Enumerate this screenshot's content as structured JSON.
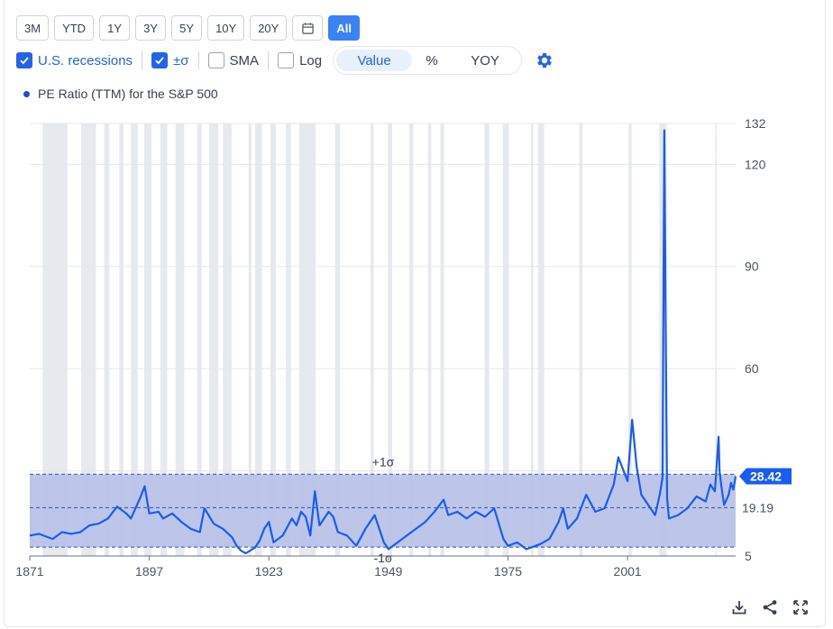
{
  "range_buttons": [
    {
      "label": "3M"
    },
    {
      "label": "YTD"
    },
    {
      "label": "1Y"
    },
    {
      "label": "3Y"
    },
    {
      "label": "5Y"
    },
    {
      "label": "10Y"
    },
    {
      "label": "20Y"
    }
  ],
  "range_all_label": "All",
  "options": {
    "recessions_label": "U.S. recessions",
    "sigma_label": "±σ",
    "sma_label": "SMA",
    "log_label": "Log",
    "modes": [
      "Value",
      "%",
      "YOY"
    ],
    "selected_mode": "Value"
  },
  "legend_label": "PE Ratio (TTM) for the S&P 500",
  "colors": {
    "accent": "#2563eb",
    "line": "#1a5cf0",
    "band": "#b9c3e8",
    "recession": "#e6eaef"
  },
  "icons": [
    "calendar-icon",
    "check-icon",
    "gear-icon",
    "download-icon",
    "share-icon",
    "expand-icon"
  ],
  "chart_data": {
    "type": "line",
    "title": "",
    "series_name": "PE Ratio (TTM) for the S&P 500",
    "xlim": [
      1871,
      2024.5
    ],
    "ylim": [
      5,
      132
    ],
    "x_ticks": [
      1871,
      1897,
      1923,
      1949,
      1975,
      2001
    ],
    "y_ticks": [
      120,
      90,
      60,
      5
    ],
    "y_top_label": "132",
    "mean_label": "19.19",
    "mean": 19.19,
    "plus_sigma": 29.0,
    "minus_sigma": 7.6,
    "plus_sigma_label": "+1σ",
    "minus_sigma_label": "-1σ",
    "last_value_label": "28.42",
    "last_value": 28.42,
    "recessions": [
      [
        1873.8,
        1879.2
      ],
      [
        1882.2,
        1885.4
      ],
      [
        1887.2,
        1888.3
      ],
      [
        1890.5,
        1891.4
      ],
      [
        1893.0,
        1894.5
      ],
      [
        1895.9,
        1897.5
      ],
      [
        1899.4,
        1900.9
      ],
      [
        1902.7,
        1904.6
      ],
      [
        1907.4,
        1908.4
      ],
      [
        1910.0,
        1912.0
      ],
      [
        1913.0,
        1914.9
      ],
      [
        1918.6,
        1919.2
      ],
      [
        1920.0,
        1921.5
      ],
      [
        1923.3,
        1924.5
      ],
      [
        1926.7,
        1927.8
      ],
      [
        1929.6,
        1933.2
      ],
      [
        1937.4,
        1938.5
      ],
      [
        1945.1,
        1945.8
      ],
      [
        1948.9,
        1949.8
      ],
      [
        1953.5,
        1954.4
      ],
      [
        1957.6,
        1958.3
      ],
      [
        1960.3,
        1961.1
      ],
      [
        1969.9,
        1970.9
      ],
      [
        1973.9,
        1975.2
      ],
      [
        1980.0,
        1980.5
      ],
      [
        1981.5,
        1982.9
      ],
      [
        1990.5,
        1991.2
      ],
      [
        2001.2,
        2001.9
      ],
      [
        2007.9,
        2009.5
      ],
      [
        2020.1,
        2020.4
      ]
    ],
    "x": [
      1871,
      1873,
      1876,
      1878,
      1880,
      1882,
      1884,
      1886,
      1888,
      1890,
      1892,
      1893,
      1895,
      1896,
      1897,
      1899,
      1900,
      1902,
      1904,
      1906,
      1908,
      1909,
      1911,
      1913,
      1915,
      1916,
      1917,
      1918,
      1920,
      1921,
      1922,
      1923,
      1924,
      1926,
      1928,
      1929,
      1930,
      1931,
      1932,
      1933,
      1934,
      1936,
      1937,
      1938,
      1940,
      1942,
      1944,
      1946,
      1948,
      1949,
      1951,
      1953,
      1955,
      1957,
      1959,
      1961,
      1962,
      1964,
      1966,
      1968,
      1970,
      1972,
      1974,
      1975,
      1977,
      1979,
      1980,
      1982,
      1984,
      1986,
      1987,
      1988,
      1990,
      1992,
      1994,
      1996,
      1998,
      1999,
      2000,
      2001,
      2002,
      2003,
      2004,
      2006,
      2007,
      2008,
      2008.6,
      2009,
      2009.3,
      2009.6,
      2010,
      2012,
      2014,
      2016,
      2018,
      2019,
      2020,
      2020.8,
      2021,
      2021.5,
      2022,
      2022.5,
      2023,
      2023.5,
      2024,
      2024.5
    ],
    "y": [
      11,
      11.5,
      10,
      12,
      11.5,
      12,
      14,
      14.5,
      16,
      19.5,
      17.5,
      16,
      22,
      25.5,
      17.5,
      18,
      16,
      17.5,
      15,
      13,
      12,
      19,
      14.5,
      13,
      10.5,
      8,
      6.5,
      5.8,
      7.5,
      9.5,
      13,
      15,
      9,
      11,
      16,
      14,
      18,
      16.5,
      11,
      24,
      14,
      18,
      16.5,
      12,
      11,
      8,
      13,
      17,
      9,
      7,
      9,
      11,
      13,
      15,
      18,
      21.5,
      17,
      18,
      16,
      18,
      16.5,
      19,
      10,
      8,
      9,
      7,
      7.5,
      8.5,
      10,
      15,
      19,
      13,
      16,
      23,
      18,
      19,
      26,
      34,
      30.5,
      27,
      45,
      31,
      23,
      19,
      17,
      23,
      28,
      130,
      70,
      22,
      16,
      17,
      19,
      22.5,
      21,
      26,
      24,
      40,
      30,
      24.5,
      20,
      21.5,
      23,
      26.5,
      24.5,
      28.42
    ]
  },
  "tools": {
    "download": "download",
    "share": "share",
    "expand": "expand"
  }
}
